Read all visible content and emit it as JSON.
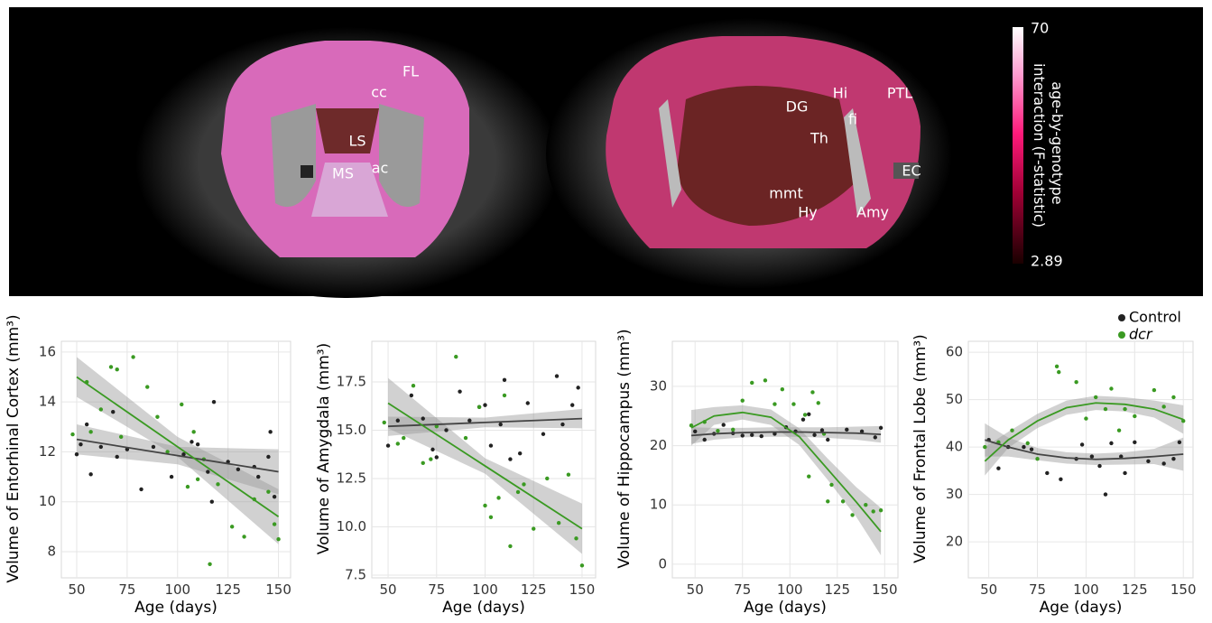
{
  "panel": {
    "labels": [
      "FL",
      "cc",
      "LS",
      "MS",
      "ac",
      "DG",
      "Hi",
      "PTL",
      "fi",
      "Th",
      "EC",
      "mmt",
      "Hy",
      "Amy"
    ],
    "colorbar": {
      "ticks": [
        70,
        2.89
      ],
      "label": [
        "age-by-genotype",
        "interaction (F-statistic)"
      ]
    }
  },
  "chart_data": [
    {
      "type": "scatter",
      "xlabel": "Age (days)",
      "ylabel": "Volume of Entorhinal Cortex (mm³)",
      "xlim": [
        42.4,
        156
      ],
      "ylim": [
        6.95,
        16.43
      ],
      "xticks": [
        50,
        75,
        100,
        125,
        150
      ],
      "yticks": [
        8,
        10,
        12,
        14,
        16
      ],
      "grid": true,
      "series": [
        {
          "color": "#222222",
          "x": [
            50,
            52,
            55,
            57,
            62,
            68,
            70,
            75,
            82,
            88,
            97,
            103,
            107,
            110,
            115,
            117,
            118,
            125,
            130,
            138,
            140,
            145,
            146,
            148
          ],
          "values": [
            11.9,
            12.3,
            13.1,
            11.1,
            12.2,
            13.6,
            11.8,
            12.1,
            10.5,
            12.2,
            11.0,
            11.9,
            12.4,
            12.3,
            11.2,
            10.0,
            14.0,
            11.6,
            11.3,
            11.4,
            11.0,
            11.8,
            12.8,
            10.2
          ],
          "fit": {
            "x": [
              50,
              100,
              150
            ],
            "values": [
              12.5,
              11.85,
              11.2
            ],
            "lower": [
              11.9,
              11.5,
              10.3
            ],
            "upper": [
              13.1,
              12.2,
              12.1
            ]
          }
        },
        {
          "color": "#3a9a22",
          "x": [
            48,
            55,
            57,
            62,
            67,
            70,
            72,
            78,
            85,
            90,
            95,
            102,
            105,
            108,
            110,
            113,
            116,
            120,
            127,
            133,
            138,
            145,
            148,
            150
          ],
          "values": [
            12.7,
            14.8,
            12.8,
            13.7,
            15.4,
            15.3,
            12.6,
            15.8,
            14.6,
            13.4,
            12.0,
            13.9,
            10.6,
            12.8,
            10.9,
            11.7,
            7.5,
            10.7,
            9.0,
            8.6,
            10.1,
            10.4,
            9.1,
            8.5
          ],
          "fit": {
            "x": [
              50,
              100,
              150
            ],
            "values": [
              15.0,
              12.2,
              9.4
            ],
            "lower": [
              14.2,
              11.8,
              8.3
            ],
            "upper": [
              15.8,
              12.6,
              10.5
            ]
          }
        }
      ]
    },
    {
      "type": "scatter",
      "xlabel": "Age (days)",
      "ylabel": "Volume of Amygdala (mm³)",
      "xlim": [
        41.6,
        157
      ],
      "ylim": [
        7.36,
        19.6
      ],
      "xticks": [
        50,
        75,
        100,
        125,
        150
      ],
      "yticks": [
        7.5,
        {
          "value": 10,
          "label": "10.0"
        },
        12.5,
        {
          "value": 15,
          "label": "15.0"
        },
        17.5
      ],
      "grid": true,
      "series": [
        {
          "color": "#222222",
          "x": [
            50,
            55,
            62,
            68,
            73,
            75,
            80,
            87,
            92,
            97,
            100,
            103,
            108,
            110,
            113,
            118,
            122,
            130,
            137,
            140,
            145,
            148
          ],
          "values": [
            14.2,
            15.5,
            16.8,
            15.6,
            14.0,
            13.6,
            15.0,
            17.0,
            15.5,
            16.2,
            16.3,
            14.2,
            15.3,
            17.6,
            13.5,
            13.8,
            16.4,
            14.8,
            17.8,
            15.3,
            16.3,
            17.2
          ],
          "fit": {
            "x": [
              50,
              100,
              150
            ],
            "values": [
              15.2,
              15.4,
              15.6
            ],
            "lower": [
              14.7,
              15.15,
              15.1
            ],
            "upper": [
              15.7,
              15.65,
              16.1
            ]
          }
        },
        {
          "color": "#3a9a22",
          "x": [
            48,
            55,
            58,
            63,
            68,
            72,
            75,
            85,
            90,
            97,
            100,
            103,
            107,
            110,
            113,
            117,
            120,
            125,
            132,
            138,
            143,
            147,
            150
          ],
          "values": [
            15.4,
            14.3,
            14.6,
            17.3,
            13.3,
            13.5,
            15.2,
            18.8,
            14.6,
            16.2,
            11.1,
            10.5,
            11.5,
            16.8,
            9.0,
            11.8,
            12.2,
            9.9,
            12.5,
            10.2,
            12.7,
            9.4,
            8.0
          ],
          "fit": {
            "x": [
              50,
              100,
              150
            ],
            "values": [
              16.4,
              13.15,
              9.9
            ],
            "lower": [
              15.1,
              12.75,
              8.6
            ],
            "upper": [
              17.7,
              13.55,
              11.2
            ]
          }
        }
      ]
    },
    {
      "type": "scatter",
      "xlabel": "Age (days)",
      "ylabel": "Volume of Hippocampus (mm³)",
      "xlim": [
        38,
        157
      ],
      "ylim": [
        -2.3,
        37.6
      ],
      "xticks": [
        50,
        75,
        100,
        125,
        150
      ],
      "yticks": [
        0,
        10,
        20,
        30
      ],
      "grid": true,
      "series": [
        {
          "color": "#222222",
          "x": [
            50,
            55,
            60,
            65,
            70,
            75,
            80,
            85,
            92,
            98,
            103,
            107,
            110,
            113,
            117,
            120,
            130,
            138,
            145,
            148
          ],
          "values": [
            22.4,
            21.0,
            22.0,
            23.5,
            22.1,
            21.7,
            21.8,
            21.6,
            22.0,
            23.1,
            22.4,
            24.4,
            25.3,
            21.8,
            22.6,
            21.0,
            22.7,
            22.4,
            21.4,
            23.0
          ],
          "fit": {
            "x": [
              48,
              60,
              75,
              90,
              105,
              120,
              135,
              148
            ],
            "values": [
              21.7,
              22.0,
              22.2,
              22.3,
              22.3,
              22.2,
              22.1,
              21.9
            ],
            "lower": [
              20.3,
              21.0,
              21.4,
              21.5,
              21.5,
              21.3,
              21.0,
              20.5
            ],
            "upper": [
              23.1,
              23.0,
              23.0,
              23.1,
              23.1,
              23.1,
              23.2,
              23.3
            ]
          }
        },
        {
          "color": "#3a9a22",
          "x": [
            48,
            55,
            62,
            70,
            75,
            80,
            87,
            92,
            96,
            102,
            108,
            110,
            112,
            115,
            118,
            120,
            122,
            128,
            133,
            140,
            144,
            148
          ],
          "values": [
            23.4,
            24.0,
            22.5,
            22.7,
            27.6,
            30.6,
            31.0,
            27.0,
            29.5,
            27.0,
            25.2,
            14.8,
            29.0,
            27.2,
            22.0,
            10.6,
            13.4,
            10.6,
            8.3,
            10.0,
            8.9,
            9.1
          ],
          "fit": {
            "x": [
              48,
              60,
              75,
              90,
              105,
              120,
              135,
              148
            ],
            "values": [
              23.0,
              25.0,
              25.6,
              24.8,
              21.5,
              16.0,
              10.5,
              5.5
            ],
            "lower": [
              20.0,
              23.5,
              24.4,
              23.5,
              20.1,
              14.2,
              8.0,
              1.5
            ],
            "upper": [
              26.0,
              26.5,
              26.8,
              26.1,
              22.9,
              17.8,
              13.0,
              9.5
            ]
          }
        }
      ]
    },
    {
      "type": "scatter",
      "xlabel": "Age (days)",
      "ylabel": "Volume of Frontal Lobe (mm³)",
      "xlim": [
        39.5,
        155
      ],
      "ylim": [
        12.4,
        62.3
      ],
      "xticks": [
        50,
        75,
        100,
        125,
        150
      ],
      "yticks": [
        20,
        30,
        40,
        50,
        60
      ],
      "grid": true,
      "series": [
        {
          "name": "Control",
          "color": "#222222",
          "x": [
            50,
            55,
            60,
            68,
            72,
            80,
            87,
            95,
            98,
            103,
            107,
            110,
            113,
            118,
            120,
            125,
            132,
            140,
            145,
            148
          ],
          "values": [
            41.5,
            35.5,
            40.0,
            40.0,
            39.5,
            34.5,
            33.2,
            37.5,
            40.5,
            38.0,
            36.0,
            30.0,
            40.8,
            38.0,
            34.5,
            41.0,
            37.0,
            36.5,
            37.5,
            41.0
          ],
          "fit": {
            "x": [
              48,
              60,
              75,
              90,
              105,
              120,
              135,
              150
            ],
            "values": [
              41.5,
              40.0,
              38.5,
              37.7,
              37.4,
              37.6,
              38.0,
              38.5
            ],
            "lower": [
              38.0,
              38.0,
              37.2,
              36.5,
              36.2,
              36.3,
              36.4,
              35.0
            ],
            "upper": [
              45.0,
              42.0,
              39.8,
              38.9,
              38.6,
              38.9,
              39.6,
              42.0
            ]
          }
        },
        {
          "name": "dcr",
          "color": "#3a9a22",
          "x": [
            48,
            55,
            62,
            70,
            75,
            85,
            86,
            95,
            100,
            105,
            110,
            113,
            117,
            120,
            125,
            135,
            140,
            145,
            150
          ],
          "values": [
            40.0,
            41.0,
            43.5,
            40.8,
            37.5,
            57.0,
            55.8,
            53.7,
            46.0,
            50.5,
            48.0,
            52.3,
            43.5,
            48.0,
            46.5,
            52.0,
            48.5,
            50.5,
            45.5
          ],
          "fit": {
            "x": [
              48,
              60,
              75,
              90,
              105,
              120,
              135,
              150
            ],
            "values": [
              37.0,
              41.5,
              45.5,
              48.3,
              49.3,
              49.0,
              48.0,
              45.8
            ],
            "lower": [
              34.0,
              39.8,
              44.0,
              46.8,
              47.8,
              47.5,
              46.2,
              42.8
            ],
            "upper": [
              40.0,
              43.2,
              47.0,
              49.8,
              50.8,
              50.5,
              49.8,
              48.8
            ]
          }
        }
      ]
    }
  ]
}
